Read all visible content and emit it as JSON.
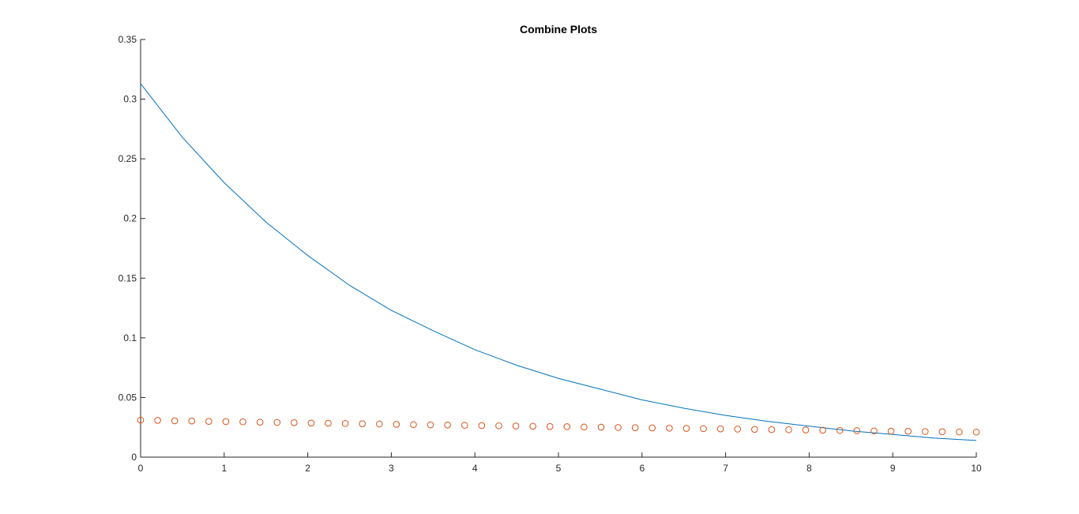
{
  "chart_data": {
    "type": "line",
    "title": "Combine Plots",
    "xlabel": "",
    "ylabel": "",
    "xlim": [
      0,
      10
    ],
    "ylim": [
      0,
      0.35
    ],
    "x_ticks": [
      0,
      1,
      2,
      3,
      4,
      5,
      6,
      7,
      8,
      9,
      10
    ],
    "x_tick_labels": [
      "0",
      "1",
      "2",
      "3",
      "4",
      "5",
      "6",
      "7",
      "8",
      "9",
      "10"
    ],
    "y_ticks": [
      0,
      0.05,
      0.1,
      0.15,
      0.2,
      0.25,
      0.3,
      0.35
    ],
    "y_tick_labels": [
      "0",
      "0.05",
      "0.1",
      "0.15",
      "0.2",
      "0.25",
      "0.3",
      "0.35"
    ],
    "grid": false,
    "legend": "none",
    "series": [
      {
        "type": "line",
        "color": "#0072BD",
        "x": [
          0,
          0.5,
          1,
          1.5,
          2,
          2.5,
          3,
          3.5,
          4,
          4.5,
          5,
          5.5,
          6,
          6.5,
          7,
          7.5,
          8,
          8.5,
          9,
          9.5,
          10
        ],
        "y": [
          0.313,
          0.268,
          0.23,
          0.197,
          0.169,
          0.144,
          0.123,
          0.106,
          0.09,
          0.077,
          0.066,
          0.057,
          0.048,
          0.041,
          0.035,
          0.03,
          0.026,
          0.022,
          0.019,
          0.016,
          0.014
        ]
      },
      {
        "type": "scatter",
        "marker": "circle",
        "color": "#D95319",
        "x": [
          0,
          0.204,
          0.408,
          0.612,
          0.816,
          1.02,
          1.224,
          1.429,
          1.633,
          1.837,
          2.041,
          2.245,
          2.449,
          2.653,
          2.857,
          3.061,
          3.265,
          3.469,
          3.673,
          3.878,
          4.082,
          4.286,
          4.49,
          4.694,
          4.898,
          5.102,
          5.306,
          5.51,
          5.714,
          5.918,
          6.122,
          6.327,
          6.531,
          6.735,
          6.939,
          7.143,
          7.347,
          7.551,
          7.755,
          7.959,
          8.163,
          8.367,
          8.571,
          8.776,
          8.98,
          9.184,
          9.388,
          9.592,
          9.796,
          10
        ],
        "y": [
          0.031,
          0.0308,
          0.0305,
          0.0303,
          0.03,
          0.0298,
          0.0296,
          0.0293,
          0.0291,
          0.0289,
          0.0286,
          0.0284,
          0.0282,
          0.028,
          0.0278,
          0.0275,
          0.0273,
          0.0271,
          0.0269,
          0.0267,
          0.0265,
          0.0263,
          0.0261,
          0.0259,
          0.0257,
          0.0255,
          0.0253,
          0.0251,
          0.0249,
          0.0247,
          0.0245,
          0.0243,
          0.0241,
          0.0239,
          0.0237,
          0.0235,
          0.0233,
          0.0231,
          0.023,
          0.0228,
          0.0226,
          0.0224,
          0.0222,
          0.022,
          0.0218,
          0.0217,
          0.0215,
          0.0213,
          0.0211,
          0.021
        ]
      }
    ]
  }
}
